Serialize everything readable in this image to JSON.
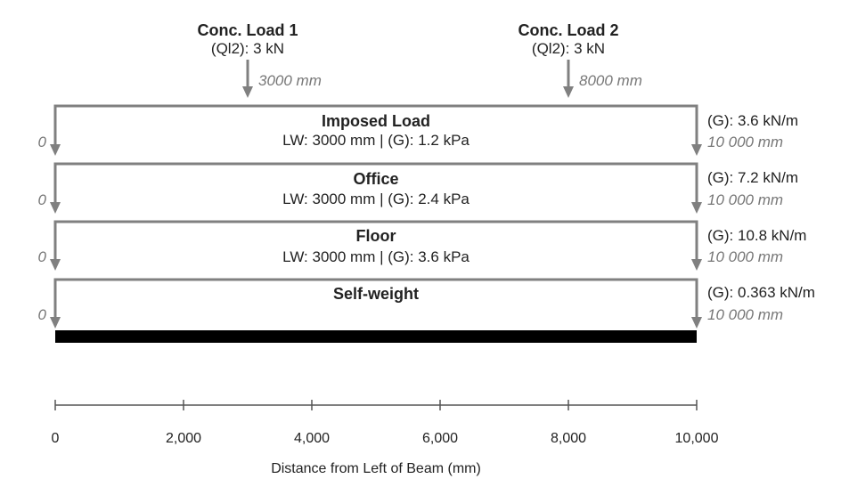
{
  "point_loads": [
    {
      "title": "Conc. Load 1",
      "value": "(Ql2): 3 kN",
      "position": "3000 mm",
      "x_mm": 3000
    },
    {
      "title": "Conc. Load 2",
      "value": "(Ql2): 3 kN",
      "position": "8000 mm",
      "x_mm": 8000
    }
  ],
  "distributed_loads": [
    {
      "title": "Imposed Load",
      "detail": "LW: 3000 mm | (G): 1.2 kPa",
      "start_label": "0",
      "end_label": "10 000 mm",
      "line_load": "(G): 3.6 kN/m"
    },
    {
      "title": "Office",
      "detail": "LW: 3000 mm | (G): 2.4 kPa",
      "start_label": "0",
      "end_label": "10 000 mm",
      "line_load": "(G): 7.2 kN/m"
    },
    {
      "title": "Floor",
      "detail": "LW: 3000 mm | (G): 3.6 kPa",
      "start_label": "0",
      "end_label": "10 000 mm",
      "line_load": "(G): 10.8 kN/m"
    },
    {
      "title": "Self-weight",
      "detail": "",
      "start_label": "0",
      "end_label": "10 000 mm",
      "line_load": "(G): 0.363 kN/m"
    }
  ],
  "beam": {
    "length_mm": 10000,
    "color": "#000000"
  },
  "axis": {
    "label": "Distance from Left of Beam (mm)",
    "ticks": [
      {
        "value": 0,
        "label": "0"
      },
      {
        "value": 2000,
        "label": "2,000"
      },
      {
        "value": 4000,
        "label": "4,000"
      },
      {
        "value": 6000,
        "label": "6,000"
      },
      {
        "value": 8000,
        "label": "8,000"
      },
      {
        "value": 10000,
        "label": "10,000"
      }
    ]
  },
  "colors": {
    "arrow": "#808080",
    "beam": "#000000",
    "text": "#222222",
    "position_text": "#777777"
  }
}
